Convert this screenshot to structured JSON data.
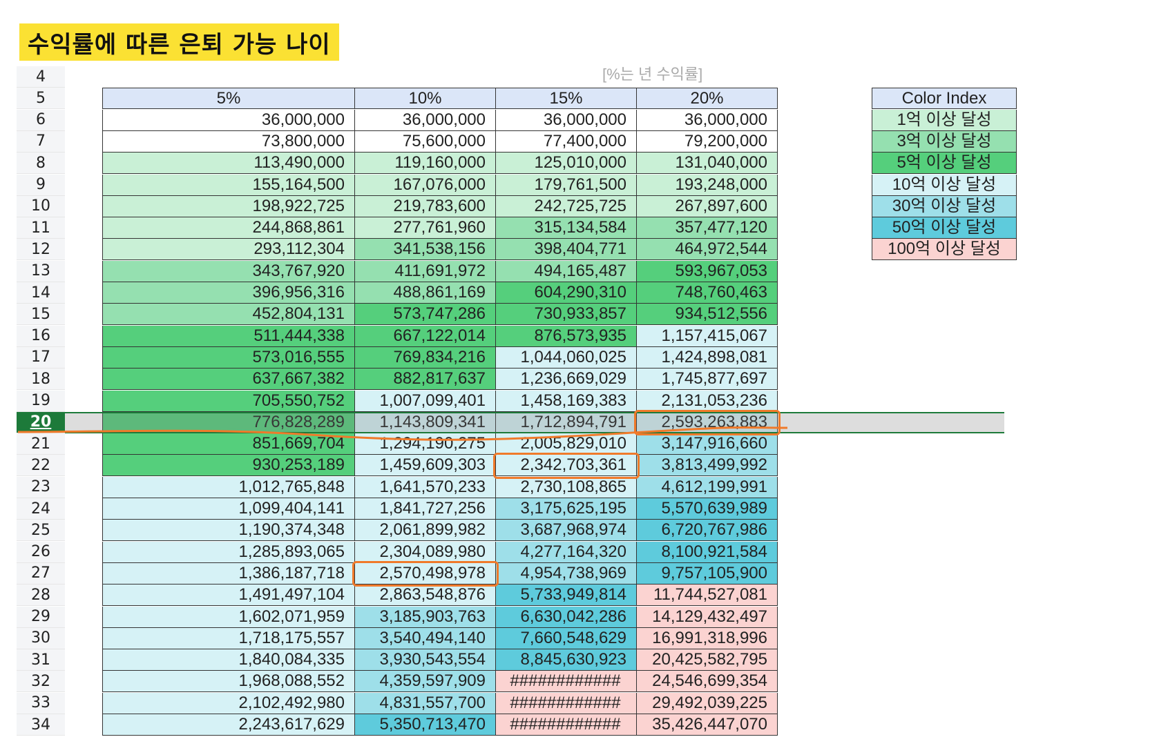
{
  "title": "수익률에 따른 은퇴 가능 나이",
  "note": "[%는 년 수익률]",
  "columns": [
    "5%",
    "10%",
    "15%",
    "20%"
  ],
  "rows": [
    {
      "num": "4",
      "cells": null
    },
    {
      "num": "5",
      "cells": "header"
    },
    {
      "num": "6",
      "cells": [
        "36,000,000",
        "36,000,000",
        "36,000,000",
        "36,000,000"
      ]
    },
    {
      "num": "7",
      "cells": [
        "73,800,000",
        "75,600,000",
        "77,400,000",
        "79,200,000"
      ]
    },
    {
      "num": "8",
      "cells": [
        "113,490,000",
        "119,160,000",
        "125,010,000",
        "131,040,000"
      ]
    },
    {
      "num": "9",
      "cells": [
        "155,164,500",
        "167,076,000",
        "179,761,500",
        "193,248,000"
      ]
    },
    {
      "num": "10",
      "cells": [
        "198,922,725",
        "219,783,600",
        "242,725,725",
        "267,897,600"
      ]
    },
    {
      "num": "11",
      "cells": [
        "244,868,861",
        "277,761,960",
        "315,134,584",
        "357,477,120"
      ]
    },
    {
      "num": "12",
      "cells": [
        "293,112,304",
        "341,538,156",
        "398,404,771",
        "464,972,544"
      ]
    },
    {
      "num": "13",
      "cells": [
        "343,767,920",
        "411,691,972",
        "494,165,487",
        "593,967,053"
      ]
    },
    {
      "num": "14",
      "cells": [
        "396,956,316",
        "488,861,169",
        "604,290,310",
        "748,760,463"
      ]
    },
    {
      "num": "15",
      "cells": [
        "452,804,131",
        "573,747,286",
        "730,933,857",
        "934,512,556"
      ]
    },
    {
      "num": "16",
      "cells": [
        "511,444,338",
        "667,122,014",
        "876,573,935",
        "1,157,415,067"
      ]
    },
    {
      "num": "17",
      "cells": [
        "573,016,555",
        "769,834,216",
        "1,044,060,025",
        "1,424,898,081"
      ]
    },
    {
      "num": "18",
      "cells": [
        "637,667,382",
        "882,817,637",
        "1,236,669,029",
        "1,745,877,697"
      ]
    },
    {
      "num": "19",
      "cells": [
        "705,550,752",
        "1,007,099,401",
        "1,458,169,383",
        "2,131,053,236"
      ]
    },
    {
      "num": "20",
      "cells": [
        "776,828,289",
        "1,143,809,341",
        "1,712,894,791",
        "2,593,263,883"
      ]
    },
    {
      "num": "21",
      "cells": [
        "851,669,704",
        "1,294,190,275",
        "2,005,829,010",
        "3,147,916,660"
      ]
    },
    {
      "num": "22",
      "cells": [
        "930,253,189",
        "1,459,609,303",
        "2,342,703,361",
        "3,813,499,992"
      ]
    },
    {
      "num": "23",
      "cells": [
        "1,012,765,848",
        "1,641,570,233",
        "2,730,108,865",
        "4,612,199,991"
      ]
    },
    {
      "num": "24",
      "cells": [
        "1,099,404,141",
        "1,841,727,256",
        "3,175,625,195",
        "5,570,639,989"
      ]
    },
    {
      "num": "25",
      "cells": [
        "1,190,374,348",
        "2,061,899,982",
        "3,687,968,974",
        "6,720,767,986"
      ]
    },
    {
      "num": "26",
      "cells": [
        "1,285,893,065",
        "2,304,089,980",
        "4,277,164,320",
        "8,100,921,584"
      ]
    },
    {
      "num": "27",
      "cells": [
        "1,386,187,718",
        "2,570,498,978",
        "4,954,738,969",
        "9,757,105,900"
      ]
    },
    {
      "num": "28",
      "cells": [
        "1,491,497,104",
        "2,863,548,876",
        "5,733,949,814",
        "11,744,527,081"
      ]
    },
    {
      "num": "29",
      "cells": [
        "1,602,071,959",
        "3,185,903,763",
        "6,630,042,286",
        "14,129,432,497"
      ]
    },
    {
      "num": "30",
      "cells": [
        "1,718,175,557",
        "3,540,494,140",
        "7,660,548,629",
        "16,991,318,996"
      ]
    },
    {
      "num": "31",
      "cells": [
        "1,840,084,335",
        "3,930,543,554",
        "8,845,630,923",
        "20,425,582,795"
      ]
    },
    {
      "num": "32",
      "cells": [
        "1,968,088,552",
        "4,359,597,909",
        "############",
        "24,546,699,354"
      ]
    },
    {
      "num": "33",
      "cells": [
        "2,102,492,980",
        "4,831,557,700",
        "############",
        "29,492,039,225"
      ]
    },
    {
      "num": "34",
      "cells": [
        "2,243,617,629",
        "5,350,713,470",
        "############",
        "35,426,447,070"
      ]
    }
  ],
  "legend": {
    "title": "Color Index",
    "items": [
      {
        "label": "1억 이상 달성",
        "color": "#c9f0d6"
      },
      {
        "label": "3억 이상 달성",
        "color": "#95e0b0"
      },
      {
        "label": "5억 이상 달성",
        "color": "#55cf7c"
      },
      {
        "label": "10억 이상 달성",
        "color": "#d6f2f6"
      },
      {
        "label": "30억 이상 달성",
        "color": "#9edfe9"
      },
      {
        "label": "50억 이상 달성",
        "color": "#5ecbdc"
      },
      {
        "label": "100억 이상 달성",
        "color": "#fbd3d1"
      }
    ]
  },
  "colors": {
    "header_bg": "#dbe6f8",
    "selection": "#1d7a3a",
    "annotation": "#f07a2a"
  },
  "selected_row": "20"
}
